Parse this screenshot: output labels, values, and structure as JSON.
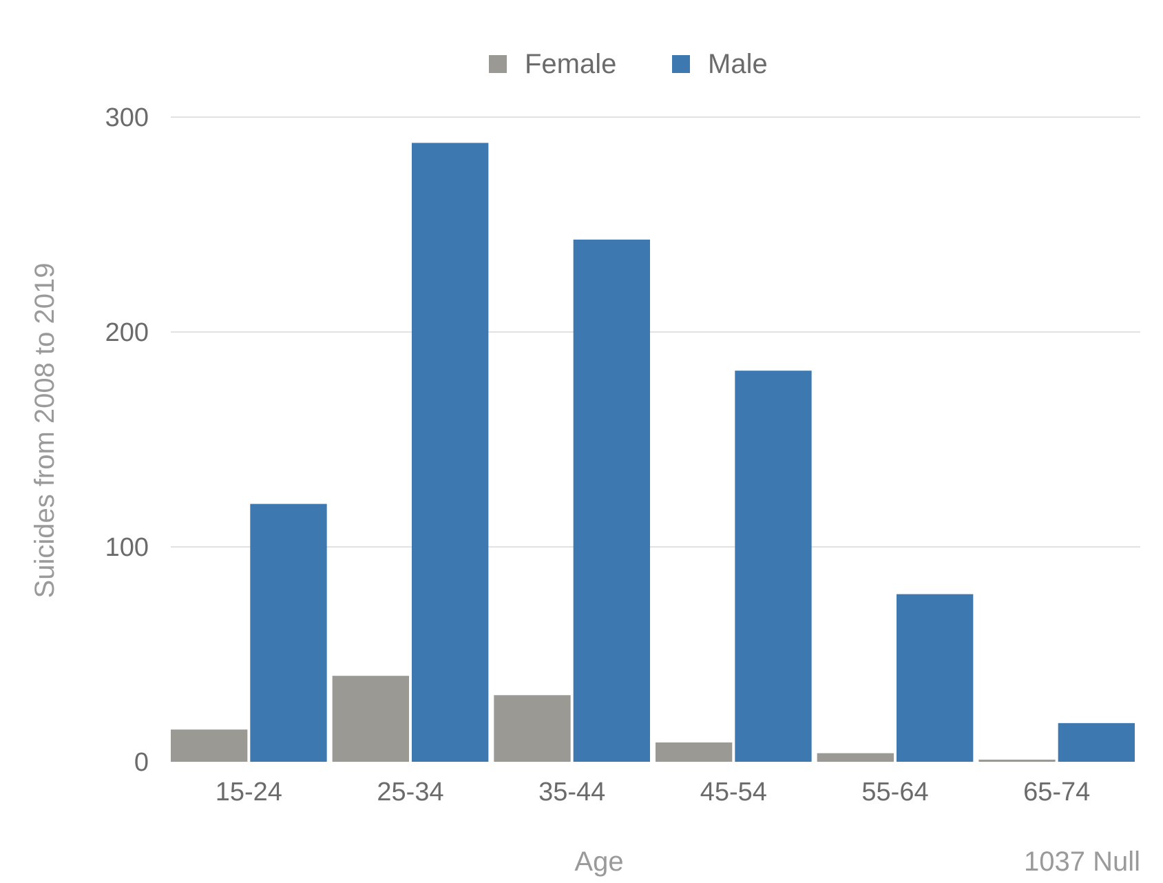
{
  "chart_data": {
    "type": "bar",
    "categories": [
      "15-24",
      "25-34",
      "35-44",
      "45-54",
      "55-64",
      "65-74"
    ],
    "series": [
      {
        "name": "Female",
        "values": [
          15,
          40,
          31,
          9,
          4,
          1
        ],
        "color": "#9b9994"
      },
      {
        "name": "Male",
        "values": [
          120,
          288,
          243,
          182,
          78,
          18
        ],
        "color": "#3d78b1"
      }
    ],
    "xlabel": "Age",
    "ylabel": "Suicides from 2008 to 2019",
    "ylim": [
      0,
      300
    ],
    "yticks": [
      0,
      100,
      200,
      300
    ],
    "grid": true,
    "legend": "top-center",
    "footnote": "1037 Null"
  }
}
